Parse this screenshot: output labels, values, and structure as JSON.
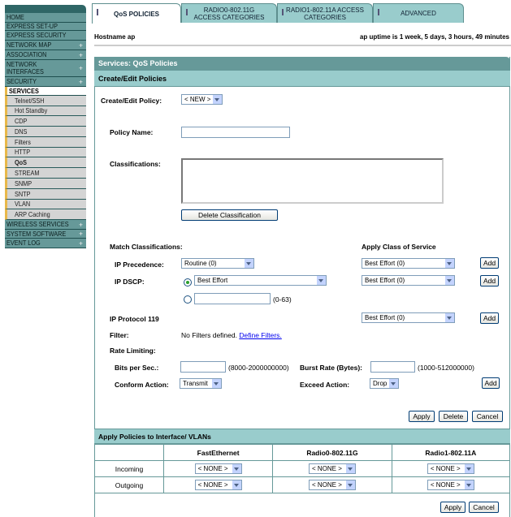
{
  "sidebar": {
    "items": [
      {
        "label": "HOME",
        "plus": false
      },
      {
        "label": "EXPRESS SET-UP",
        "plus": false
      },
      {
        "label": "EXPRESS SECURITY",
        "plus": false
      },
      {
        "label": "NETWORK MAP",
        "plus": true
      },
      {
        "label": "ASSOCIATION",
        "plus": true
      },
      {
        "label": "NETWORK INTERFACES",
        "plus": true
      },
      {
        "label": "SECURITY",
        "plus": true
      },
      {
        "label": "SERVICES",
        "plus": false
      },
      {
        "label": "Telnet/SSH"
      },
      {
        "label": "Hot Standby"
      },
      {
        "label": "CDP"
      },
      {
        "label": "DNS"
      },
      {
        "label": "Filters"
      },
      {
        "label": "HTTP"
      },
      {
        "label": "QoS"
      },
      {
        "label": "STREAM"
      },
      {
        "label": "SNMP"
      },
      {
        "label": "SNTP"
      },
      {
        "label": "VLAN"
      },
      {
        "label": "ARP Caching"
      },
      {
        "label": "WIRELESS SERVICES",
        "plus": true
      },
      {
        "label": "SYSTEM SOFTWARE",
        "plus": true
      },
      {
        "label": "EVENT LOG",
        "plus": true
      }
    ],
    "plus_sign": "+"
  },
  "tabs": [
    {
      "label": "QoS POLICIES",
      "active": true
    },
    {
      "label": "RADIO0-802.11G ACCESS CATEGORIES"
    },
    {
      "label": "RADIO1-802.11A ACCESS CATEGORIES"
    },
    {
      "label": "ADVANCED"
    }
  ],
  "header": {
    "hostname": "Hostname  ap",
    "uptime": "ap uptime is 1 week, 5 days, 3 hours, 49 minutes"
  },
  "panel": {
    "title": "Services: QoS Policies",
    "subtitle": "Create/Edit Policies",
    "create_edit_label": "Create/Edit Policy:",
    "create_edit_value": "< NEW >",
    "policy_name_label": "Policy Name:",
    "policy_name_value": "",
    "classifications_label": "Classifications:",
    "delete_classification": "Delete Classification",
    "match_label": "Match Classifications:",
    "apply_cos_label": "Apply Class of Service",
    "ip_precedence_label": "IP Precedence:",
    "ip_precedence_value": "Routine (0)",
    "ip_dscp_label": "IP DSCP:",
    "ip_dscp_value": "Best Effort",
    "dscp_range": "(0-63)",
    "ip_protocol_label": "IP Protocol 119",
    "cos_value": "Best Effort (0)",
    "add": "Add",
    "filter_label": "Filter:",
    "filter_text": "No Filters defined.",
    "define_filters": "Define Filters.",
    "rate_limiting": "Rate Limiting:",
    "bps_label": "Bits per Sec.:",
    "bps_range": "(8000-2000000000)",
    "burst_label": "Burst Rate (Bytes):",
    "burst_range": "(1000-512000000)",
    "conform_label": "Conform Action:",
    "conform_value": "Transmit",
    "exceed_label": "Exceed Action:",
    "exceed_value": "Drop",
    "apply": "Apply",
    "delete": "Delete",
    "cancel": "Cancel"
  },
  "interfaces": {
    "title": "Apply Policies to Interface/ VLANs",
    "columns": [
      "FastEthernet",
      "Radio0-802.11G",
      "Radio1-802.11A"
    ],
    "rows": [
      {
        "label": "Incoming",
        "values": [
          "< NONE >",
          "< NONE >",
          "< NONE >"
        ]
      },
      {
        "label": "Outgoing",
        "values": [
          "< NONE >",
          "< NONE >",
          "< NONE >"
        ]
      }
    ],
    "apply": "Apply",
    "cancel": "Cancel"
  },
  "colors": {
    "teal_dark": "#669999",
    "teal_light": "#99cccc",
    "accent": "#e8b84a",
    "link": "#0000ee"
  }
}
